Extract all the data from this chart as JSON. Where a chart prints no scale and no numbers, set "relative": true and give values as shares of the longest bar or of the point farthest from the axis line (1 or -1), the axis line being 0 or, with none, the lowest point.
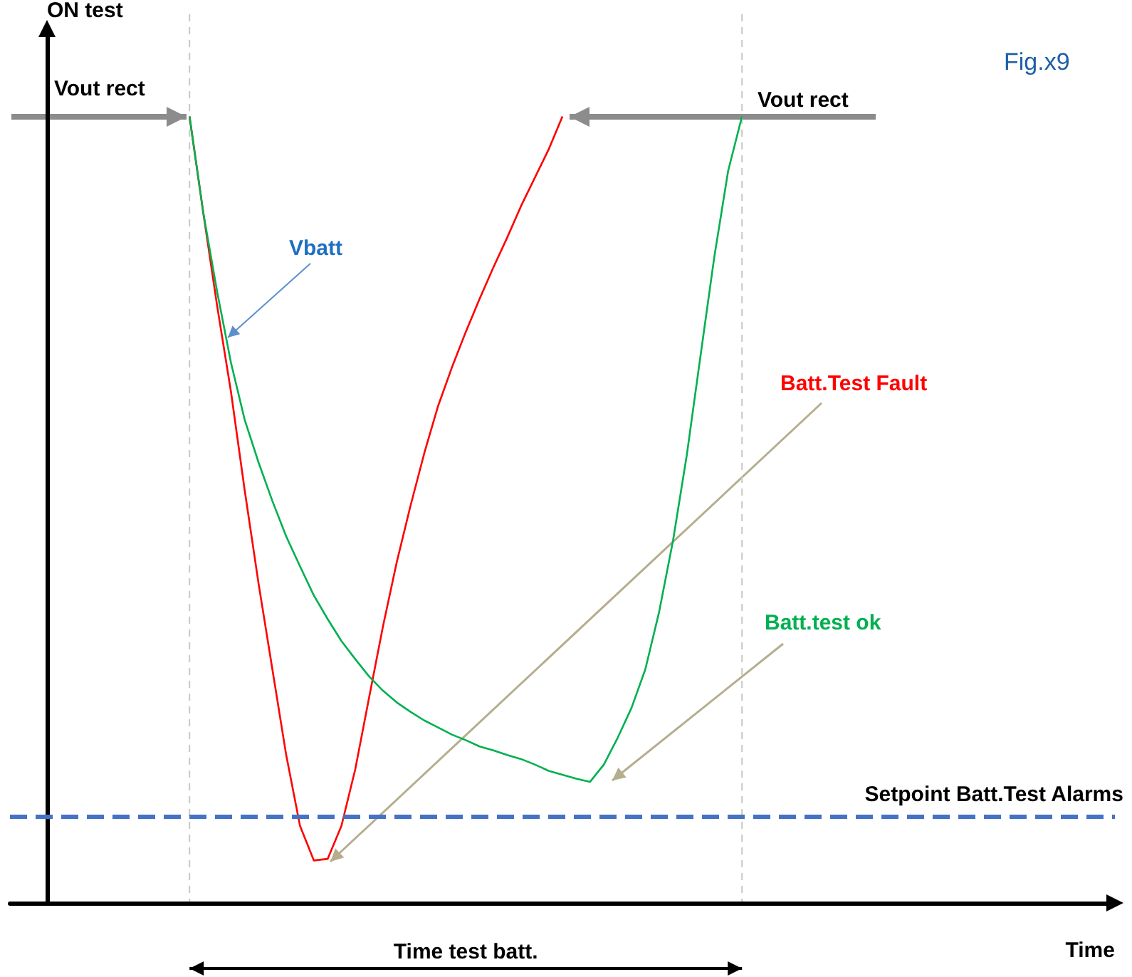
{
  "chart_data": {
    "type": "line",
    "relative": true,
    "ylabel": "ON test",
    "xlabel": "Time",
    "grid": false,
    "marker": "none",
    "line_style": "solid",
    "categories": [
      null,
      null,
      null,
      null,
      null,
      null,
      null,
      null,
      null,
      null,
      null,
      null,
      null,
      null,
      null,
      null,
      null,
      null,
      null,
      null,
      null,
      null,
      null,
      null,
      null,
      null,
      null,
      null,
      null,
      null,
      null,
      null,
      null,
      null,
      null,
      null,
      null,
      null,
      null,
      null,
      null,
      null,
      null,
      null,
      null,
      null,
      null,
      null,
      null,
      null,
      null,
      null,
      null,
      null,
      null,
      null,
      null,
      null,
      null,
      null,
      null,
      null,
      null,
      null,
      null,
      null,
      null,
      null,
      null,
      null,
      null,
      null,
      null,
      null,
      null,
      null,
      null,
      null,
      null,
      null,
      null
    ],
    "series": [
      {
        "color": "#ff0000",
        "values": [
          null,
          null,
          null,
          null,
          null,
          null,
          null,
          null,
          null,
          null,
          null,
          null,
          null,
          1,
          0.877,
          0.759,
          0.65,
          0.524,
          0.406,
          0.297,
          0.188,
          0.098,
          0.054,
          0.056,
          0.098,
          0.17,
          0.261,
          0.351,
          0.433,
          0.505,
          0.572,
          0.632,
          0.681,
          0.726,
          0.768,
          0.808,
          0.846,
          0.886,
          0.922,
          0.958,
          1,
          null,
          null,
          null,
          null,
          null,
          null,
          null,
          null,
          null,
          null,
          null,
          null,
          null,
          null,
          null,
          null,
          null,
          null,
          null,
          null,
          null,
          null,
          null,
          null,
          null,
          null,
          null,
          null,
          null,
          null,
          null,
          null,
          null,
          null,
          null,
          null,
          null,
          null,
          null,
          null
        ]
      },
      {
        "color": "#00b050",
        "values": [
          null,
          null,
          null,
          null,
          null,
          null,
          null,
          null,
          null,
          null,
          null,
          null,
          null,
          1,
          0.877,
          0.777,
          0.687,
          0.614,
          0.56,
          0.511,
          0.466,
          0.428,
          0.391,
          0.361,
          0.333,
          0.31,
          0.288,
          0.27,
          0.255,
          0.243,
          0.232,
          0.223,
          0.214,
          0.207,
          0.199,
          0.194,
          0.188,
          0.183,
          0.176,
          0.168,
          0.163,
          0.158,
          0.154,
          0.176,
          0.21,
          0.248,
          0.297,
          0.37,
          0.46,
          0.569,
          0.696,
          0.822,
          0.931,
          1,
          null,
          null,
          null,
          null,
          null,
          null,
          null,
          null,
          null,
          null,
          null,
          null,
          null,
          null,
          null,
          null,
          null,
          null,
          null,
          null,
          null,
          null,
          null,
          null,
          null,
          null,
          null
        ]
      }
    ],
    "ref_lines": [
      {
        "axis": "y",
        "value": 0.107,
        "label": "Setpoint Batt.Test Alarms",
        "color": "#4472c4",
        "line_style": "dashed"
      }
    ],
    "annotations": [
      "Vout rect",
      "Vout rect",
      "Vbatt",
      "Batt.Test Fault",
      "Batt.test ok",
      "Time test batt.",
      "Fig.x9"
    ]
  }
}
